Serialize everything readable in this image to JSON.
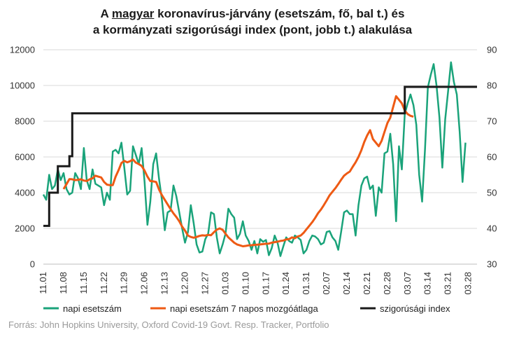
{
  "chart_data": {
    "type": "line",
    "title": {
      "line1_pre": "A ",
      "line1_underlined": "magyar",
      "line1_post": " koronavírus-járvány (esetszám, fő, bal t.) és",
      "line2": "a kormányzati szigorúsági index (pont, jobb t.) alakulása"
    },
    "source": "Forrás: John Hopkins University, Oxford Covid-19 Govt. Resp. Tracker, Portfolio",
    "y_left": {
      "range": [
        0,
        12000
      ],
      "ticks": [
        "0",
        "2000",
        "4000",
        "6000",
        "8000",
        "10000",
        "12000"
      ]
    },
    "y_right": {
      "range": [
        30,
        90
      ],
      "ticks": [
        "30",
        "40",
        "50",
        "60",
        "70",
        "80",
        "90"
      ]
    },
    "x_tick_labels": [
      "11.01",
      "11.08",
      "11.15",
      "11.22",
      "11.29",
      "12.06",
      "12.13",
      "12.20",
      "12.27",
      "01.03",
      "01.10",
      "01.17",
      "01.24",
      "01.31",
      "02.07",
      "02.14",
      "02.21",
      "02.28",
      "03.07",
      "03.14",
      "03.21",
      "03.28"
    ],
    "grid": "horizontal",
    "legend_position": "bottom",
    "colors": {
      "daily": "#1aa37a",
      "avg": "#ee5a14",
      "index": "#1a1a1a",
      "grid": "#d9d9d9"
    },
    "series": [
      {
        "name": "napi esetszám",
        "axis": "left",
        "values": [
          3900,
          3600,
          5000,
          4200,
          4400,
          5300,
          4700,
          5100,
          4200,
          3900,
          4000,
          5100,
          4800,
          4200,
          6500,
          4700,
          4200,
          5300,
          4500,
          4400,
          4300,
          3300,
          4000,
          3600,
          6300,
          6400,
          6200,
          6800,
          5400,
          3900,
          4100,
          6600,
          6100,
          5600,
          6500,
          4600,
          2200,
          3500,
          5600,
          6200,
          4800,
          3600,
          1900,
          2900,
          3000,
          4400,
          3800,
          2900,
          2000,
          1200,
          1800,
          3300,
          2300,
          1100,
          650,
          700,
          1400,
          1700,
          2900,
          2800,
          1500,
          600,
          1100,
          1700,
          3100,
          2800,
          2600,
          1400,
          1700,
          2400,
          1600,
          1300,
          800,
          1300,
          600,
          1400,
          1250,
          1350,
          500,
          900,
          1600,
          1200,
          450,
          1000,
          1500,
          1300,
          1200,
          1600,
          1500,
          1350,
          600,
          800,
          1300,
          1600,
          1550,
          1400,
          1100,
          1200,
          1800,
          1850,
          1500,
          1300,
          800,
          1800,
          2900,
          3000,
          2800,
          2800,
          1600,
          3300,
          4400,
          4800,
          4900,
          4200,
          4400,
          2700,
          4300,
          4000,
          6200,
          6300,
          7300,
          5600,
          2400,
          6600,
          5300,
          8400,
          9000,
          9500,
          8900,
          7800,
          5000,
          3500,
          6400,
          9900,
          10600,
          11200,
          10000,
          8200,
          5400,
          8100,
          9700,
          11300,
          10200,
          9500,
          7400,
          4600,
          6800
        ]
      },
      {
        "name": "napi esetszám 7 napos mozgóátlaga",
        "axis": "left",
        "start_index": 7,
        "values": [
          4200,
          4480,
          4760,
          4750,
          4700,
          4720,
          4750,
          4680,
          4650,
          4750,
          4800,
          4950,
          4900,
          4850,
          4600,
          4450,
          4420,
          4420,
          4900,
          5260,
          5660,
          5780,
          5700,
          5760,
          5850,
          5680,
          5600,
          5500,
          5230,
          4900,
          4650,
          4630,
          4600,
          4180,
          3860,
          3600,
          3340,
          3080,
          2840,
          2640,
          2400,
          2100,
          1880,
          1600,
          1520,
          1480,
          1520,
          1580,
          1610,
          1600,
          1640,
          1620,
          1790,
          1930,
          2000,
          1920,
          1700,
          1500,
          1350,
          1200,
          1100,
          1050,
          1000,
          1020,
          1050,
          1060,
          1080,
          1090,
          1100,
          1120,
          1140,
          1150,
          1200,
          1230,
          1260,
          1300,
          1320,
          1380,
          1400,
          1500,
          1450,
          1550,
          1600,
          1750,
          1950,
          2150,
          2350,
          2580,
          2850,
          3050,
          3300,
          3570,
          3850,
          4050,
          4250,
          4480,
          4720,
          4950,
          5080,
          5180,
          5450,
          5700,
          6000,
          6380,
          6840,
          7200,
          7500,
          7000,
          6800,
          6600,
          6900,
          7400,
          7900,
          8200,
          8800,
          9400,
          9200,
          9000,
          8600,
          8400,
          8300,
          8250
        ]
      },
      {
        "name": "szigorúsági index",
        "axis": "right",
        "steps": [
          {
            "from_day": 0,
            "value": 40.7
          },
          {
            "from_day": 2,
            "value": 50.0
          },
          {
            "from_day": 5,
            "value": 57.4
          },
          {
            "from_day": 9,
            "value": 60.2
          },
          {
            "from_day": 10,
            "value": 72.2
          },
          {
            "from_day": 125,
            "value": 79.6
          }
        ],
        "end_day": 150
      }
    ]
  }
}
